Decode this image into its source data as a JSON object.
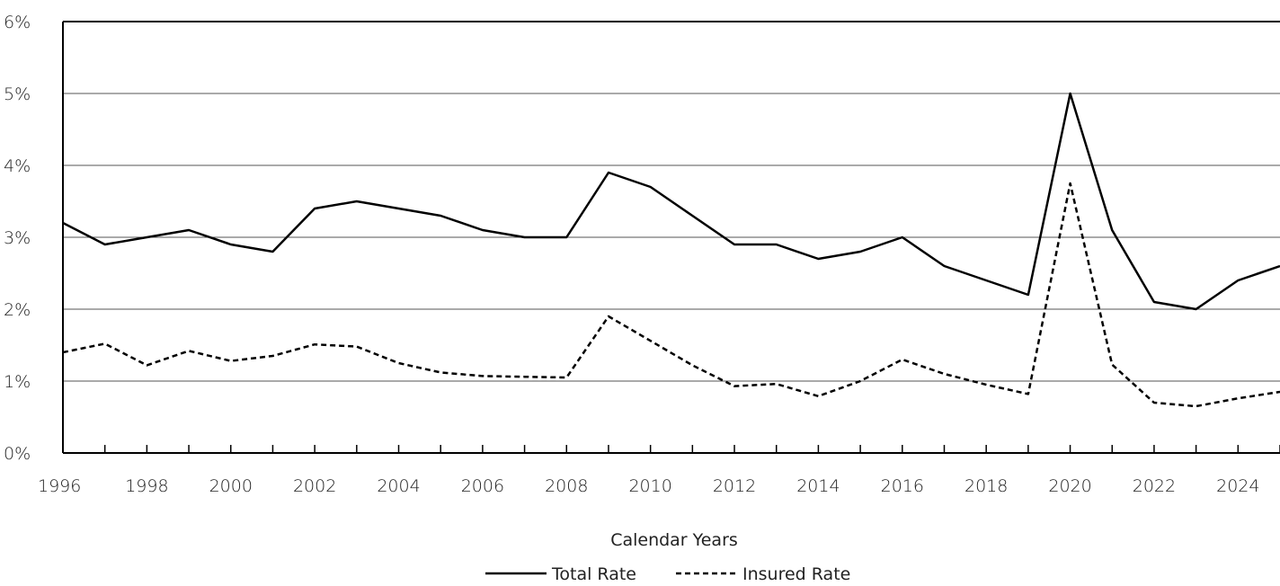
{
  "chart_data": {
    "type": "line",
    "title": "",
    "xlabel": "Calendar Years",
    "ylabel": "",
    "xlim": [
      1996,
      2025
    ],
    "ylim": [
      0,
      6
    ],
    "y_ticks": [
      "0%",
      "1%",
      "2%",
      "3%",
      "4%",
      "5%",
      "6%"
    ],
    "x_tick_labels": [
      "1996",
      "1998",
      "2000",
      "2002",
      "2004",
      "2006",
      "2008",
      "2010",
      "2012",
      "2014",
      "2016",
      "2018",
      "2020",
      "2022",
      "2024"
    ],
    "grid": "horizontal",
    "legend_position": "bottom",
    "x": [
      1996,
      1997,
      1998,
      1999,
      2000,
      2001,
      2002,
      2003,
      2004,
      2005,
      2006,
      2007,
      2008,
      2009,
      2010,
      2011,
      2012,
      2013,
      2014,
      2015,
      2016,
      2017,
      2018,
      2019,
      2020,
      2021,
      2022,
      2023,
      2024,
      2025
    ],
    "series": [
      {
        "name": "Total Rate",
        "style": "solid",
        "color": "#000000",
        "values": [
          3.2,
          2.9,
          3.0,
          3.1,
          2.9,
          2.8,
          3.4,
          3.5,
          3.4,
          3.3,
          3.1,
          3.0,
          3.0,
          3.9,
          3.7,
          3.3,
          2.9,
          2.9,
          2.7,
          2.8,
          3.0,
          2.6,
          2.4,
          2.2,
          5.0,
          3.1,
          2.1,
          2.0,
          2.4,
          2.6
        ]
      },
      {
        "name": "Insured Rate",
        "style": "dashed",
        "color": "#000000",
        "values": [
          1.4,
          1.52,
          1.22,
          1.42,
          1.28,
          1.35,
          1.51,
          1.48,
          1.25,
          1.12,
          1.07,
          1.06,
          1.05,
          1.9,
          1.56,
          1.22,
          0.93,
          0.96,
          0.79,
          1.0,
          1.3,
          1.1,
          0.95,
          0.82,
          3.75,
          1.23,
          0.7,
          0.65,
          0.76,
          0.85
        ]
      }
    ]
  }
}
